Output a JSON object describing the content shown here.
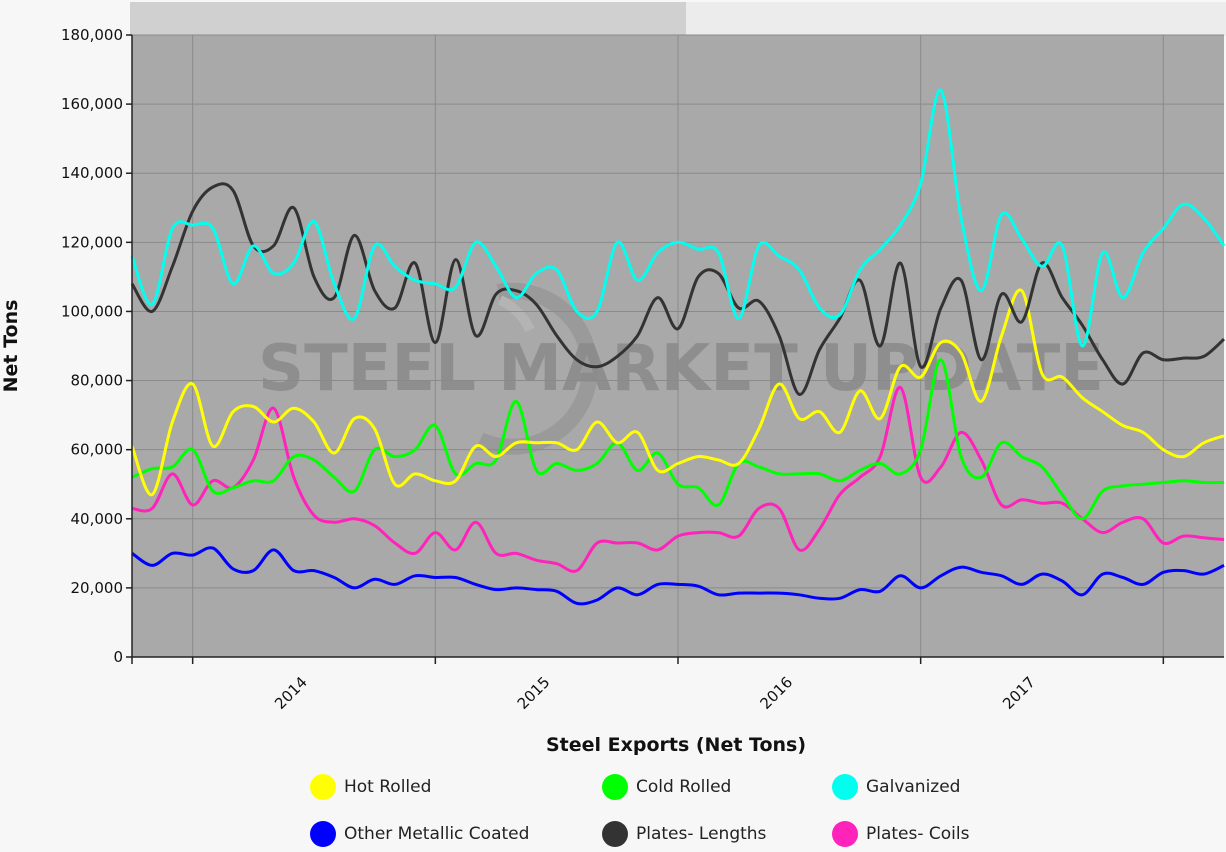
{
  "chart_data": {
    "type": "line",
    "xlabel": "Steel Exports (Net Tons)",
    "ylabel": "Net Tons",
    "ylim": [
      0,
      180000
    ],
    "yticks": [
      0,
      20000,
      40000,
      60000,
      80000,
      100000,
      120000,
      140000,
      160000,
      180000
    ],
    "ytick_labels": [
      "0",
      "20,000",
      "40,000",
      "60,000",
      "80,000",
      "100,000",
      "120,000",
      "140,000",
      "160,000",
      "180,000"
    ],
    "x_start": "2013-10",
    "x_end": "2018-06",
    "x_tick_labels": [
      "2014",
      "2015",
      "2016",
      "2017"
    ],
    "grid": true,
    "legend_position": "bottom",
    "watermark": "STEEL MARKET UPDATE",
    "series": [
      {
        "name": "Hot Rolled",
        "color": "#ffff00",
        "values": [
          61000,
          47000,
          68000,
          79000,
          61000,
          71000,
          72500,
          68000,
          72000,
          68000,
          59000,
          69000,
          66000,
          50000,
          53000,
          51000,
          51000,
          61000,
          58000,
          62000,
          62000,
          62000,
          60000,
          68000,
          62000,
          65000,
          54000,
          56000,
          58000,
          57000,
          56000,
          66000,
          79000,
          69000,
          71000,
          65000,
          77000,
          69000,
          84000,
          81000,
          91000,
          88000,
          74000,
          93000,
          106000,
          82000,
          81000,
          75000,
          71000,
          67000,
          65000,
          60000,
          58000,
          62000,
          64000
        ]
      },
      {
        "name": "Cold Rolled",
        "color": "#00ff00",
        "values": [
          52000,
          54500,
          55000,
          60000,
          48000,
          49000,
          51000,
          51000,
          58000,
          57000,
          52000,
          48000,
          60000,
          58000,
          60000,
          67000,
          53000,
          56000,
          57000,
          74000,
          54000,
          56000,
          54000,
          56000,
          62000,
          54000,
          59000,
          50000,
          49000,
          44000,
          56000,
          55000,
          53000,
          53000,
          53000,
          51000,
          54000,
          56000,
          53000,
          60000,
          86000,
          58000,
          52000,
          62000,
          58000,
          55000,
          47000,
          40000,
          48000,
          49500,
          50000,
          50500,
          51000,
          50500,
          50500
        ]
      },
      {
        "name": "Galvanized",
        "color": "#00ffee",
        "values": [
          116000,
          102000,
          124000,
          125000,
          124000,
          108000,
          119000,
          111000,
          114000,
          126000,
          108000,
          98000,
          119000,
          113000,
          109000,
          108000,
          107000,
          120000,
          113000,
          104000,
          111000,
          112000,
          100000,
          100000,
          120000,
          109000,
          117000,
          120000,
          118000,
          117000,
          98000,
          119000,
          116000,
          112000,
          101000,
          99000,
          112000,
          118000,
          125000,
          137000,
          164000,
          127000,
          106000,
          128000,
          121000,
          113000,
          119000,
          90000,
          117000,
          104000,
          117000,
          124000,
          131000,
          127000,
          119000
        ]
      },
      {
        "name": "Other Metallic Coated",
        "color": "#0000ff",
        "values": [
          30000,
          26500,
          30000,
          29500,
          31500,
          25500,
          25000,
          31000,
          25000,
          25000,
          23000,
          20000,
          22500,
          21000,
          23500,
          23000,
          23000,
          21000,
          19500,
          20000,
          19500,
          19000,
          15500,
          16500,
          20000,
          18000,
          21000,
          21000,
          20500,
          18000,
          18500,
          18500,
          18500,
          18000,
          17000,
          17000,
          19500,
          19000,
          23500,
          20000,
          23500,
          26000,
          24500,
          23500,
          21000,
          24000,
          22000,
          18000,
          24000,
          23000,
          21000,
          24500,
          25000,
          24000,
          26500
        ]
      },
      {
        "name": "Plates- Lengths",
        "color": "#333333",
        "values": [
          108000,
          100000,
          113000,
          129000,
          136000,
          135000,
          119000,
          119000,
          130000,
          110000,
          104000,
          122000,
          106000,
          101000,
          114000,
          91000,
          115000,
          93000,
          105000,
          106000,
          102000,
          93000,
          86000,
          84000,
          87000,
          93000,
          104000,
          95000,
          110000,
          111000,
          101000,
          103000,
          93000,
          76000,
          89000,
          98000,
          109000,
          90000,
          114000,
          84000,
          101000,
          109000,
          86000,
          105000,
          97000,
          114000,
          104000,
          96000,
          86000,
          79000,
          88000,
          86000,
          86500,
          87000,
          92000
        ]
      },
      {
        "name": "Plates- Coils",
        "color": "#ff22bb",
        "values": [
          43000,
          43000,
          53000,
          44000,
          51000,
          49000,
          57000,
          72000,
          52000,
          41000,
          39000,
          40000,
          38000,
          33000,
          30000,
          36000,
          31000,
          39000,
          30000,
          30000,
          28000,
          27000,
          25000,
          33000,
          33000,
          33000,
          31000,
          35000,
          36000,
          36000,
          35000,
          43000,
          43000,
          31000,
          37000,
          47000,
          52000,
          58000,
          78000,
          52000,
          55000,
          65000,
          57000,
          44000,
          45500,
          44500,
          44500,
          40000,
          36000,
          39000,
          40000,
          33000,
          35000,
          34500,
          34000
        ]
      }
    ]
  }
}
